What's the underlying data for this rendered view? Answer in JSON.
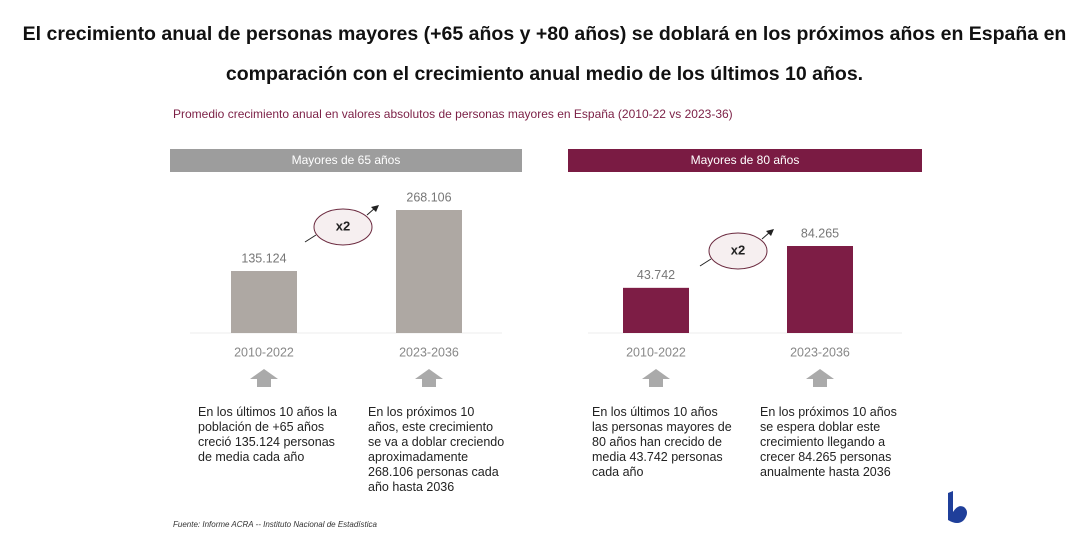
{
  "title": "El crecimiento anual de personas mayores (+65 años y +80 años) se doblará en los próximos años en España en comparación con el crecimiento anual medio de los últimos 10 años.",
  "subtitle": "Promedio crecimiento anual en valores absolutos de personas mayores en España (2010-22 vs 2023-36)",
  "source": "Fuente: Informe ACRA --  Instituto Nacional de Estadística",
  "chart_data": [
    {
      "type": "bar",
      "title": "Mayores de 65 años",
      "categories": [
        "2010-2022",
        "2023-2036"
      ],
      "values": [
        135124,
        268106
      ],
      "value_labels": [
        "135.124",
        "268.106"
      ],
      "color": "#aea8a3",
      "header_color": "#9d9d9d",
      "annotation": "x2",
      "notes": [
        "En los últimos 10 años la población de +65 años creció 135.124 personas de media cada año",
        "En los próximos 10 años, este crecimiento se va a doblar creciendo aproximadamente 268.106 personas cada año hasta 2036"
      ]
    },
    {
      "type": "bar",
      "title": "Mayores de 80 años",
      "categories": [
        "2010-2022",
        "2023-2036"
      ],
      "values": [
        43742,
        84265
      ],
      "value_labels": [
        "43.742",
        "84.265"
      ],
      "color": "#7d1d45",
      "header_color": "#7a1b43",
      "annotation": "x2",
      "notes": [
        "En los últimos 10 años las personas mayores de 80 años han crecido de media 43.742 personas cada año",
        "En los próximos 10 años se espera doblar este crecimiento llegando a crecer 84.265 personas anualmente hasta 2036"
      ]
    }
  ]
}
